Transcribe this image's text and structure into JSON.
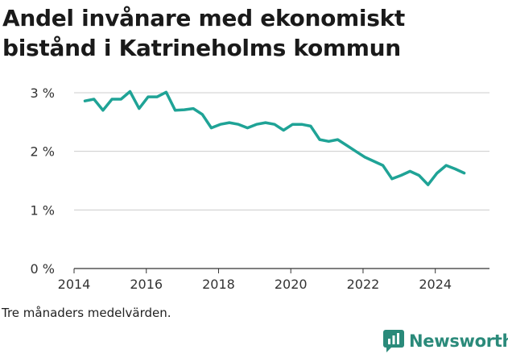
{
  "title": "Andel invånare med ekonomiskt bistånd i Katrineholms kommun",
  "note": "Tre månaders medelvärden.",
  "brand": {
    "name": "Newsworthy",
    "icon": "newsworthy-logo-icon",
    "color": "#2a8a7a"
  },
  "chart_data": {
    "type": "line",
    "xlabel": "",
    "ylabel": "",
    "xlim": [
      2014,
      2025.5
    ],
    "ylim": [
      0,
      3
    ],
    "x_ticks": [
      2014,
      2016,
      2018,
      2020,
      2022,
      2024
    ],
    "y_ticks": [
      0,
      1,
      2,
      3
    ],
    "y_tick_labels": [
      "0 %",
      "1 %",
      "2 %",
      "3 %"
    ],
    "grid": "horizontal",
    "line_color": "#1fa396",
    "series": [
      {
        "name": "",
        "x": [
          2014.3,
          2014.55,
          2014.8,
          2015.05,
          2015.3,
          2015.55,
          2015.8,
          2016.05,
          2016.3,
          2016.55,
          2016.8,
          2017.05,
          2017.3,
          2017.55,
          2017.8,
          2018.05,
          2018.3,
          2018.55,
          2018.8,
          2019.05,
          2019.3,
          2019.55,
          2019.8,
          2020.05,
          2020.3,
          2020.55,
          2020.8,
          2021.05,
          2021.3,
          2021.55,
          2021.8,
          2022.05,
          2022.3,
          2022.55,
          2022.8,
          2023.05,
          2023.3,
          2023.55,
          2023.8,
          2024.05,
          2024.3,
          2024.55,
          2024.8
        ],
        "values": [
          2.86,
          2.89,
          2.7,
          2.89,
          2.89,
          3.02,
          2.73,
          2.93,
          2.93,
          3.01,
          2.7,
          2.71,
          2.73,
          2.63,
          2.4,
          2.46,
          2.49,
          2.46,
          2.4,
          2.46,
          2.49,
          2.46,
          2.36,
          2.46,
          2.46,
          2.43,
          2.2,
          2.17,
          2.2,
          2.1,
          2.0,
          1.9,
          1.83,
          1.76,
          1.53,
          1.59,
          1.66,
          1.59,
          1.43,
          1.63,
          1.76,
          1.7,
          1.63
        ]
      }
    ]
  }
}
